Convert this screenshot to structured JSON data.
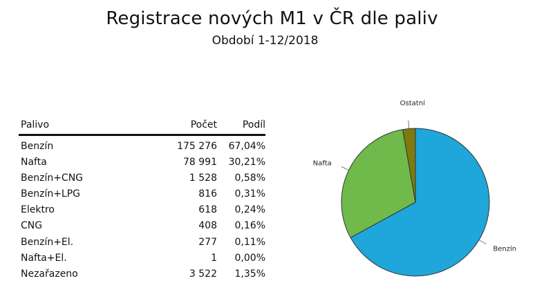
{
  "title": "Registrace nových M1 v ČR dle paliv",
  "subtitle": "Období 1-12/2018",
  "table": {
    "headers": {
      "name": "Palivo",
      "count": "Počet",
      "share": "Podíl"
    },
    "rows": [
      {
        "name": "Benzín",
        "count": "175 276",
        "share": "67,04%"
      },
      {
        "name": "Nafta",
        "count": "78 991",
        "share": "30,21%"
      },
      {
        "name": "Benzín+CNG",
        "count": "1 528",
        "share": "0,58%"
      },
      {
        "name": "Benzín+LPG",
        "count": "816",
        "share": "0,31%"
      },
      {
        "name": "Elektro",
        "count": "618",
        "share": "0,24%"
      },
      {
        "name": "CNG",
        "count": "408",
        "share": "0,16%"
      },
      {
        "name": "Benzín+El.",
        "count": "277",
        "share": "0,11%"
      },
      {
        "name": "Nafta+El.",
        "count": "1",
        "share": "0,00%"
      },
      {
        "name": "Nezařazeno",
        "count": "3 522",
        "share": "1,35%"
      }
    ]
  },
  "chart_data": {
    "type": "pie",
    "title": "",
    "start": "12-o'clock, clockwise",
    "slices": [
      {
        "label": "Benzín",
        "value": 67.04,
        "color": "#1fa6da"
      },
      {
        "label": "Nafta",
        "value": 30.21,
        "color": "#6fba4b"
      },
      {
        "label": "Ostatní",
        "value": 2.75,
        "color": "#7f7a0e"
      }
    ]
  }
}
